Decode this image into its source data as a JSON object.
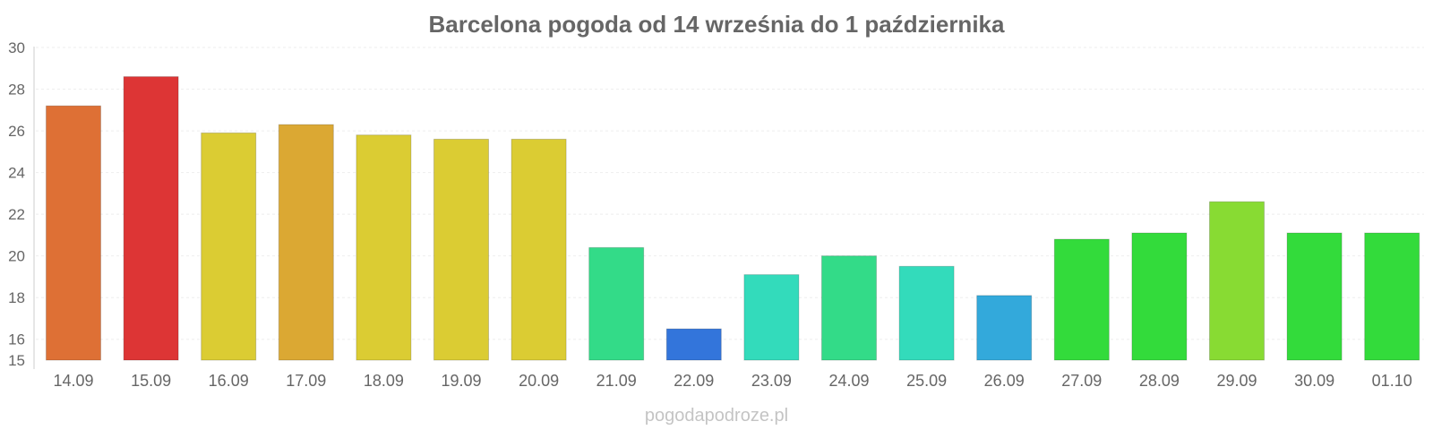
{
  "chart_data": {
    "type": "bar",
    "title": "Barcelona pogoda od 14 września do 1 października",
    "xlabel": "",
    "ylabel": "",
    "ylim": [
      15,
      30
    ],
    "y_ticks": [
      15,
      16,
      18,
      20,
      22,
      24,
      26,
      28,
      30
    ],
    "grid": true,
    "categories": [
      "14.09",
      "15.09",
      "16.09",
      "17.09",
      "18.09",
      "19.09",
      "20.09",
      "21.09",
      "22.09",
      "23.09",
      "24.09",
      "25.09",
      "26.09",
      "27.09",
      "28.09",
      "29.09",
      "30.09",
      "01.10"
    ],
    "values": [
      27.2,
      28.6,
      25.9,
      26.3,
      25.8,
      25.6,
      25.6,
      20.4,
      16.5,
      19.1,
      20.0,
      19.5,
      18.1,
      20.8,
      21.1,
      22.6,
      21.1,
      21.1
    ],
    "colors": [
      "#de7035",
      "#dd3535",
      "#dbcc33",
      "#dba833",
      "#dbcc33",
      "#dbcc33",
      "#dbcc33",
      "#33db88",
      "#3375db",
      "#33dbbb",
      "#33db88",
      "#33dbbb",
      "#33a9db",
      "#33db3b",
      "#33db3b",
      "#88db33",
      "#33db3b",
      "#33db3b"
    ]
  },
  "watermark": "pogodapodroze.pl"
}
